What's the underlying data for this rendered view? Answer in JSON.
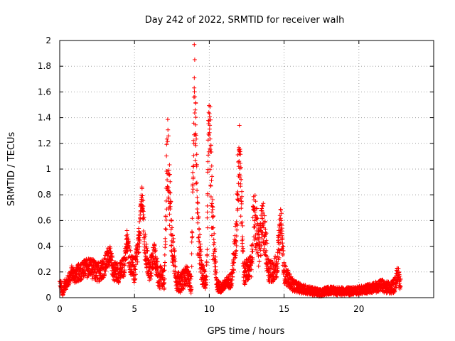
{
  "chart_data": {
    "type": "scatter",
    "title": "Day 242 of 2022, SRMTID for receiver walh",
    "xlabel": "GPS time / hours",
    "ylabel": "SRMTID / TECUs",
    "xlim": [
      0,
      25
    ],
    "ylim": [
      0,
      2
    ],
    "x_ticks": [
      "0",
      "5",
      "10",
      "15",
      "20"
    ],
    "y_ticks": [
      "0",
      "0.2",
      "0.4",
      "0.6",
      "0.8",
      "1",
      "1.2",
      "1.4",
      "1.6",
      "1.8",
      "2"
    ],
    "grid": true,
    "marker": "+",
    "color": "#ff0000",
    "series": [
      {
        "name": "SRMTID",
        "profile_x": [
          0.0,
          0.1,
          0.2,
          0.3,
          0.5,
          0.8,
          1.0,
          1.5,
          2.0,
          2.5,
          3.0,
          3.3,
          3.6,
          4.0,
          4.3,
          4.5,
          4.7,
          5.0,
          5.3,
          5.5,
          5.7,
          6.0,
          6.3,
          6.6,
          7.0,
          7.2,
          7.5,
          7.8,
          8.0,
          8.5,
          8.8,
          9.0,
          9.2,
          9.5,
          9.8,
          10.0,
          10.2,
          10.5,
          10.8,
          11.0,
          11.5,
          11.8,
          12.0,
          12.3,
          12.8,
          13.0,
          13.3,
          13.6,
          14.0,
          14.5,
          14.8,
          15.0,
          15.3,
          15.6,
          16.0,
          17.0,
          17.5,
          18.0,
          19.0,
          20.0,
          21.0,
          21.5,
          22.0,
          22.4,
          22.6,
          22.8
        ],
        "profile_y": [
          0.12,
          0.1,
          0.02,
          0.1,
          0.12,
          0.2,
          0.18,
          0.22,
          0.25,
          0.2,
          0.25,
          0.35,
          0.22,
          0.2,
          0.25,
          0.45,
          0.3,
          0.2,
          0.45,
          0.82,
          0.4,
          0.2,
          0.35,
          0.18,
          0.15,
          1.2,
          0.45,
          0.15,
          0.12,
          0.18,
          0.1,
          1.75,
          0.6,
          0.2,
          0.12,
          1.55,
          0.6,
          0.1,
          0.08,
          0.1,
          0.15,
          0.5,
          1.25,
          0.2,
          0.25,
          0.7,
          0.4,
          0.6,
          0.2,
          0.25,
          0.6,
          0.2,
          0.15,
          0.1,
          0.08,
          0.05,
          0.04,
          0.06,
          0.05,
          0.06,
          0.08,
          0.1,
          0.08,
          0.1,
          0.2,
          0.1
        ],
        "spread": [
          0.04,
          0.04,
          0.02,
          0.05,
          0.06,
          0.07,
          0.08,
          0.09,
          0.1,
          0.1,
          0.1,
          0.1,
          0.1,
          0.1,
          0.1,
          0.12,
          0.12,
          0.12,
          0.15,
          0.15,
          0.15,
          0.12,
          0.12,
          0.12,
          0.1,
          0.4,
          0.2,
          0.1,
          0.1,
          0.1,
          0.08,
          0.5,
          0.3,
          0.12,
          0.08,
          0.4,
          0.3,
          0.06,
          0.05,
          0.05,
          0.08,
          0.2,
          0.4,
          0.12,
          0.12,
          0.3,
          0.2,
          0.25,
          0.12,
          0.12,
          0.2,
          0.1,
          0.08,
          0.06,
          0.05,
          0.04,
          0.04,
          0.04,
          0.04,
          0.04,
          0.05,
          0.06,
          0.06,
          0.07,
          0.08,
          0.07
        ],
        "sample_step_hours": 0.015
      }
    ]
  }
}
